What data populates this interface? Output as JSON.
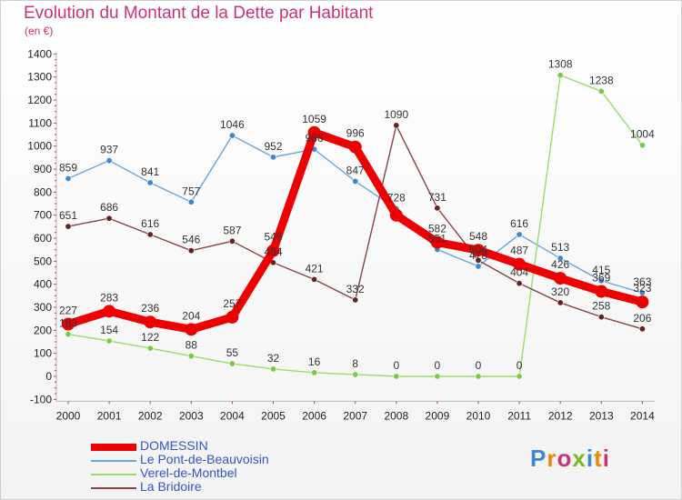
{
  "title": "Evolution du Montant de la Dette par Habitant",
  "subtitle": "(en €)",
  "logo_text": "Proxiti",
  "chart_data": {
    "type": "line",
    "title": "Evolution du Montant de la Dette par Habitant",
    "ylabel": "(en €)",
    "ylim": [
      -100,
      1400
    ],
    "yticks": [
      -100,
      0,
      100,
      200,
      300,
      400,
      500,
      600,
      700,
      800,
      900,
      1000,
      1100,
      1200,
      1300,
      1400
    ],
    "grid": false,
    "legend_position": "bottom-left",
    "x": [
      "2000",
      "2001",
      "2002",
      "2003",
      "2004",
      "2005",
      "2006",
      "2007",
      "2008",
      "2009",
      "2010",
      "2011",
      "2012",
      "2013",
      "2014"
    ],
    "series": [
      {
        "name": "DOMESSIN",
        "color": "#ee0000",
        "marker_color": "#ee0000",
        "emphasis": true,
        "values": [
          227,
          283,
          236,
          204,
          257,
          546,
          1059,
          996,
          700,
          582,
          548,
          487,
          426,
          369,
          323
        ],
        "labels": [
          "227",
          "283",
          "236",
          "204",
          "257",
          "546",
          "1059",
          "996",
          "",
          "582",
          "548",
          "487",
          "426",
          "369",
          "323"
        ]
      },
      {
        "name": "Le Pont-de-Beauvoisin",
        "color": "#6aa6d8",
        "marker_color": "#3a8ad0",
        "values": [
          859,
          937,
          841,
          757,
          1046,
          952,
          986,
          847,
          728,
          551,
          478,
          616,
          513,
          415,
          363
        ],
        "labels": [
          "859",
          "937",
          "841",
          "757",
          "1046",
          "952",
          "986",
          "847",
          "728",
          "551",
          "478",
          "616",
          "513",
          "415",
          "363"
        ]
      },
      {
        "name": "Verel-de-Montbel",
        "color": "#99dd66",
        "marker_color": "#77cc44",
        "values": [
          183,
          154,
          122,
          88,
          55,
          32,
          16,
          8,
          0,
          0,
          0,
          0,
          1308,
          1238,
          1004
        ],
        "labels": [
          "183",
          "154",
          "122",
          "88",
          "55",
          "32",
          "16",
          "8",
          "0",
          "0",
          "0",
          "0",
          "1308",
          "1238",
          "1004"
        ]
      },
      {
        "name": "La Bridoire",
        "color": "#884444",
        "marker_color": "#662222",
        "values": [
          651,
          686,
          616,
          546,
          587,
          494,
          421,
          332,
          1090,
          731,
          504,
          404,
          320,
          258,
          206
        ],
        "labels": [
          "651",
          "686",
          "616",
          "546",
          "587",
          "494",
          "421",
          "332",
          "1090",
          "731",
          "504",
          "404",
          "320",
          "258",
          "206"
        ]
      }
    ]
  },
  "legend": [
    {
      "label": "DOMESSIN",
      "color": "#ee0000",
      "width": 8
    },
    {
      "label": "Le Pont-de-Beauvoisin",
      "color": "#6aa6d8",
      "width": 2
    },
    {
      "label": "Verel-de-Montbel",
      "color": "#99dd66",
      "width": 2
    },
    {
      "label": "La Bridoire",
      "color": "#884444",
      "width": 2
    }
  ],
  "logo_colors": [
    "#3a8ad0",
    "#ee8800",
    "#cc3377",
    "#77bb22",
    "#3a8ad0",
    "#ee8800",
    "#cc3377"
  ]
}
